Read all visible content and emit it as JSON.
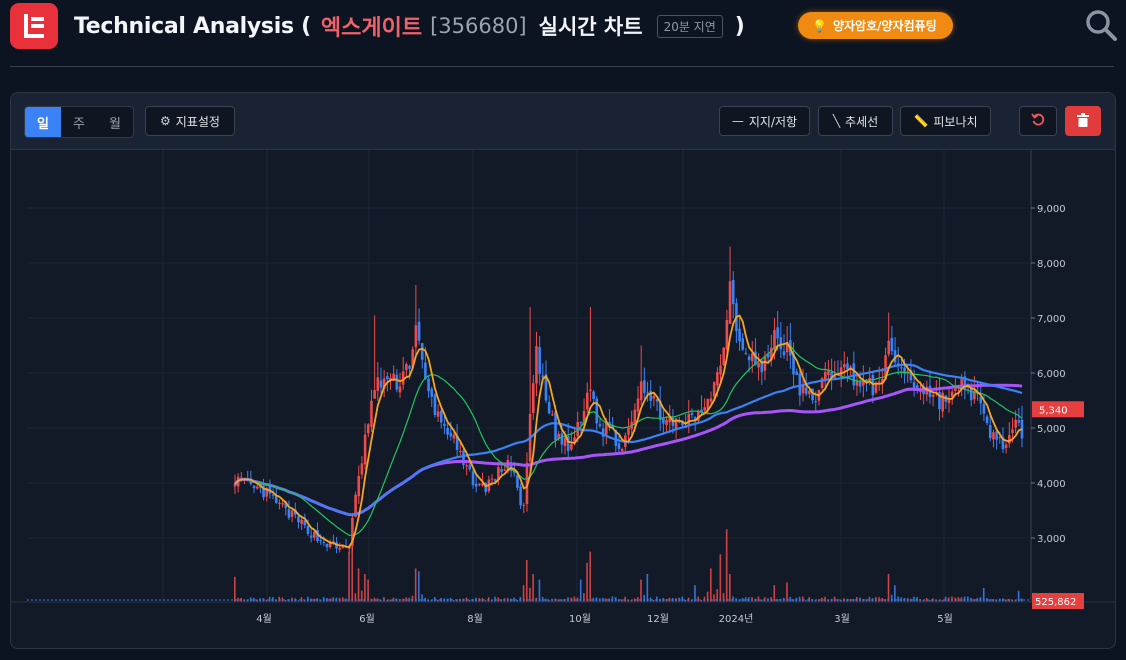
{
  "header": {
    "title_main": "Technical Analysis (",
    "stock_name": "엑스게이트",
    "stock_code": "[356680]",
    "live_chart": "실시간 차트",
    "delay_badge": "20분 지연",
    "title_close": ")",
    "theme_tag": "양자암호/양자컴퓨팅"
  },
  "toolbar": {
    "timeframes": [
      {
        "label": "일",
        "active": true
      },
      {
        "label": "주",
        "active": false
      },
      {
        "label": "월",
        "active": false
      }
    ],
    "indicator_settings": "지표설정",
    "support_resistance": "지지/저항",
    "trendline": "추세선",
    "fibonacci": "피보나치"
  },
  "colors": {
    "up": "#ef4a4a",
    "down": "#3b82f6",
    "ma5": "#f5a623",
    "ma20": "#22c55e",
    "ma60": "#3b82f6",
    "ma120": "#a855f7",
    "accent": "#e8313b",
    "theme_badge": "#f08a10"
  },
  "chart_data": {
    "type": "candlestick",
    "y_ticks": [
      "9,000",
      "8,000",
      "7,000",
      "6,000",
      "5,000",
      "4,000",
      "3,000"
    ],
    "x_ticks": [
      "4월",
      "6월",
      "8월",
      "10월",
      "12월",
      "2024년",
      "3월",
      "5월"
    ],
    "price_label": "5,340",
    "volume_label": "525,862",
    "ylim": [
      2000,
      10000
    ],
    "anchors": [
      [
        0,
        4100
      ],
      [
        5,
        3900
      ],
      [
        10,
        3800
      ],
      [
        16,
        3500
      ],
      [
        22,
        3200
      ],
      [
        27,
        2950
      ],
      [
        33,
        2800
      ],
      [
        36,
        2900
      ],
      [
        38,
        3700
      ],
      [
        41,
        4800
      ],
      [
        44,
        5700
      ],
      [
        47,
        5900
      ],
      [
        51,
        5800
      ],
      [
        55,
        6200
      ],
      [
        57,
        6800
      ],
      [
        60,
        5800
      ],
      [
        64,
        5200
      ],
      [
        68,
        4900
      ],
      [
        72,
        4300
      ],
      [
        76,
        4000
      ],
      [
        78,
        3900
      ],
      [
        82,
        4100
      ],
      [
        86,
        4400
      ],
      [
        89,
        3900
      ],
      [
        91,
        3500
      ],
      [
        93,
        5200
      ],
      [
        95,
        6300
      ],
      [
        98,
        5500
      ],
      [
        101,
        4900
      ],
      [
        105,
        4600
      ],
      [
        109,
        5100
      ],
      [
        112,
        5800
      ],
      [
        115,
        4900
      ],
      [
        118,
        5100
      ],
      [
        121,
        4600
      ],
      [
        125,
        5200
      ],
      [
        128,
        5900
      ],
      [
        131,
        5500
      ],
      [
        134,
        5300
      ],
      [
        138,
        5000
      ],
      [
        142,
        5100
      ],
      [
        146,
        5200
      ],
      [
        150,
        5700
      ],
      [
        153,
        6100
      ],
      [
        156,
        7600
      ],
      [
        159,
        6600
      ],
      [
        162,
        6400
      ],
      [
        166,
        6000
      ],
      [
        170,
        6700
      ],
      [
        174,
        6400
      ],
      [
        178,
        5700
      ],
      [
        182,
        5500
      ],
      [
        186,
        5900
      ],
      [
        190,
        6100
      ],
      [
        194,
        6000
      ],
      [
        198,
        5800
      ],
      [
        202,
        5700
      ],
      [
        206,
        6400
      ],
      [
        210,
        6100
      ],
      [
        214,
        5800
      ],
      [
        218,
        5700
      ],
      [
        222,
        5500
      ],
      [
        226,
        5600
      ],
      [
        230,
        5800
      ],
      [
        234,
        5500
      ],
      [
        237,
        5000
      ],
      [
        240,
        4800
      ],
      [
        243,
        4700
      ],
      [
        246,
        5000
      ],
      [
        248,
        4900
      ]
    ],
    "volume_spikes": [
      [
        0,
        0.45
      ],
      [
        36,
        0.9
      ],
      [
        37,
        1.3
      ],
      [
        39,
        0.6
      ],
      [
        41,
        0.5
      ],
      [
        42,
        0.4
      ],
      [
        57,
        0.6
      ],
      [
        58,
        0.55
      ],
      [
        91,
        0.3
      ],
      [
        92,
        0.75
      ],
      [
        94,
        0.5
      ],
      [
        96,
        0.4
      ],
      [
        109,
        0.4
      ],
      [
        111,
        0.7
      ],
      [
        112,
        0.9
      ],
      [
        128,
        0.4
      ],
      [
        130,
        0.5
      ],
      [
        145,
        0.3
      ],
      [
        150,
        0.6
      ],
      [
        153,
        0.85
      ],
      [
        155,
        1.3
      ],
      [
        156,
        0.5
      ],
      [
        170,
        0.3
      ],
      [
        174,
        0.35
      ],
      [
        206,
        0.5
      ],
      [
        208,
        0.3
      ],
      [
        236,
        0.25
      ],
      [
        247,
        0.2
      ]
    ]
  }
}
